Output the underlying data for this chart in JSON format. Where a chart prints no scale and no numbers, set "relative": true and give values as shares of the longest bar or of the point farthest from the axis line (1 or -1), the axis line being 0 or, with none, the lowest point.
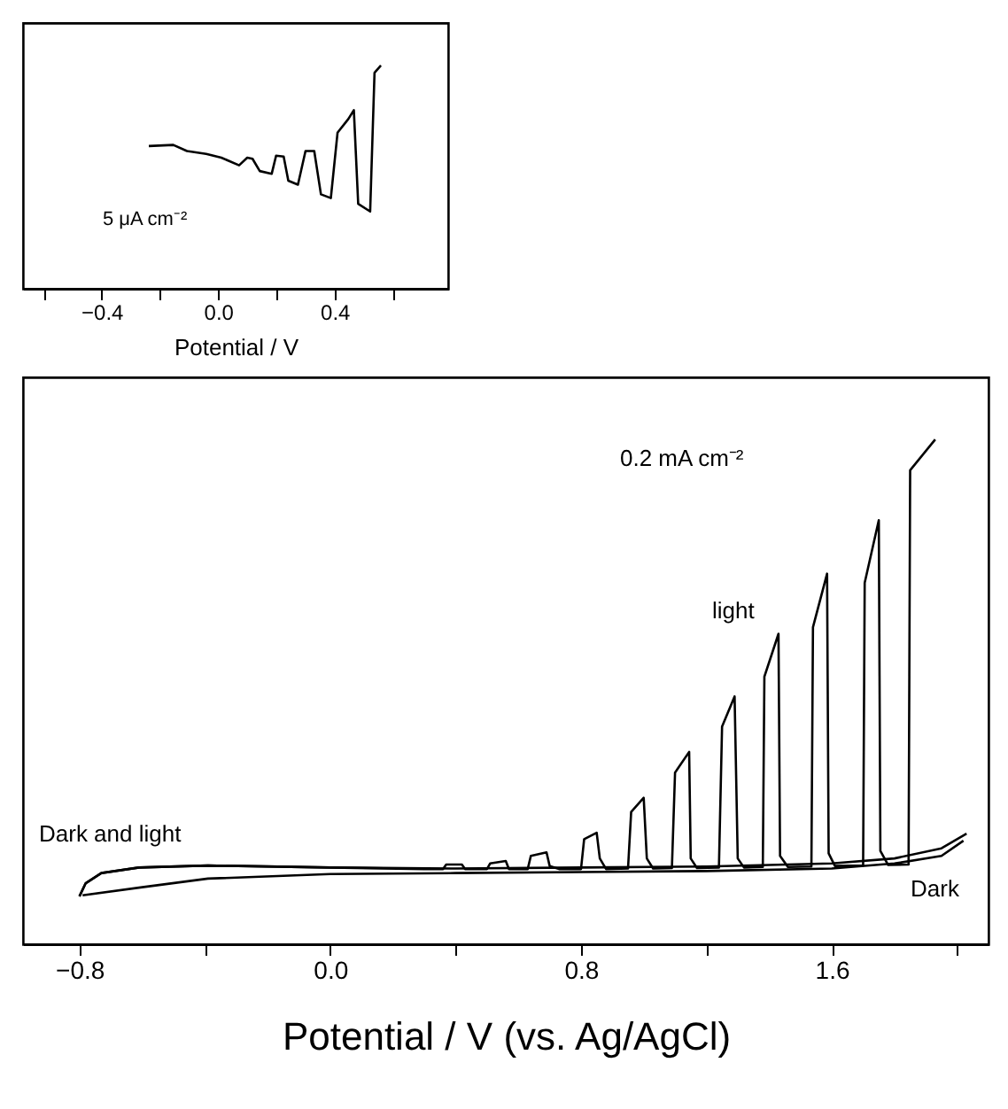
{
  "chart_data": [
    {
      "type": "line",
      "relative": true,
      "xlabel": "Potential / V",
      "xlim": [
        -0.67,
        0.79
      ],
      "xticks": [
        {
          "value": -0.6,
          "label": null
        },
        -0.4,
        {
          "value": -0.2,
          "label": null
        },
        {
          "value": 0.0,
          "label": "0.0"
        },
        {
          "value": 0.2,
          "label": null
        },
        0.4,
        {
          "value": 0.6,
          "label": null
        }
      ],
      "tick_labels": "x",
      "series": [
        {
          "color": "#000000",
          "x": [
            -0.238,
            -0.154,
            -0.107,
            -0.041,
            0.011,
            0.072,
            0.1,
            0.118,
            0.143,
            0.184,
            0.199,
            0.225,
            0.241,
            0.274,
            0.3,
            0.33,
            0.353,
            0.387,
            0.41,
            0.447,
            0.466,
            0.481,
            0.522,
            0.537,
            0.559
          ],
          "values": [
            0.639,
            0.644,
            0.617,
            0.604,
            0.587,
            0.553,
            0.587,
            0.582,
            0.527,
            0.515,
            0.596,
            0.592,
            0.484,
            0.466,
            0.617,
            0.617,
            0.423,
            0.406,
            0.699,
            0.76,
            0.8,
            0.38,
            0.346,
            0.967,
            1.0
          ]
        }
      ],
      "annotations": [
        "5 μA cm⁻²"
      ]
    },
    {
      "type": "line",
      "relative": true,
      "xlabel": "Potential / V (vs. Ag/AgCl)",
      "xlim": [
        -0.98,
        2.1
      ],
      "xticks": [
        -0.8,
        {
          "value": -0.4,
          "label": null
        },
        {
          "value": 0.0,
          "label": "0.0"
        },
        {
          "value": 0.4,
          "label": null
        },
        0.8,
        {
          "value": 1.2,
          "label": null
        },
        1.6,
        {
          "value": 2.0,
          "label": null
        }
      ],
      "tick_labels": "x",
      "series": [
        {
          "color": "#000000",
          "x": [
            -0.8,
            -0.78,
            -0.73,
            -0.61,
            -0.39,
            0.0,
            0.3,
            0.36,
            0.37,
            0.42,
            0.43,
            0.5,
            0.51,
            0.56,
            0.57,
            0.63,
            0.64,
            0.69,
            0.7,
            0.73,
            0.8,
            0.81,
            0.85,
            0.86,
            0.88,
            0.95,
            0.96,
            1.0,
            1.01,
            1.03,
            1.09,
            1.1,
            1.145,
            1.15,
            1.17,
            1.24,
            1.25,
            1.29,
            1.3,
            1.32,
            1.38,
            1.385,
            1.43,
            1.435,
            1.46,
            1.535,
            1.54,
            1.585,
            1.59,
            1.61,
            1.7,
            1.705,
            1.75,
            1.755,
            1.78,
            1.845,
            1.85,
            1.93
          ],
          "values": [
            0.095,
            0.121,
            0.141,
            0.152,
            0.156,
            0.152,
            0.149,
            0.149,
            0.158,
            0.158,
            0.149,
            0.149,
            0.16,
            0.165,
            0.149,
            0.149,
            0.175,
            0.182,
            0.155,
            0.149,
            0.149,
            0.208,
            0.221,
            0.17,
            0.149,
            0.15,
            0.262,
            0.29,
            0.17,
            0.15,
            0.151,
            0.34,
            0.381,
            0.17,
            0.151,
            0.152,
            0.431,
            0.491,
            0.17,
            0.152,
            0.153,
            0.53,
            0.615,
            0.175,
            0.153,
            0.154,
            0.628,
            0.734,
            0.18,
            0.155,
            0.156,
            0.716,
            0.84,
            0.185,
            0.157,
            0.158,
            0.939,
            1.0
          ]
        },
        {
          "color": "#000000",
          "x": [
            -0.8,
            -0.78,
            -0.73,
            -0.61,
            -0.39,
            0.0,
            0.4,
            0.8,
            1.2,
            1.6,
            1.8,
            1.95,
            2.03
          ],
          "values": [
            0.095,
            0.121,
            0.141,
            0.152,
            0.156,
            0.152,
            0.15,
            0.152,
            0.154,
            0.16,
            0.17,
            0.19,
            0.219
          ]
        },
        {
          "color": "#000000",
          "x": [
            -0.79,
            -0.6,
            -0.39,
            0.0,
            0.4,
            0.8,
            1.2,
            1.6,
            1.8,
            1.95,
            2.02
          ],
          "values": [
            0.097,
            0.113,
            0.13,
            0.139,
            0.141,
            0.143,
            0.145,
            0.15,
            0.16,
            0.175,
            0.205
          ]
        }
      ],
      "annotations": [
        "Dark and light",
        "light",
        "Dark",
        "0.2 mA cm⁻²"
      ]
    }
  ]
}
